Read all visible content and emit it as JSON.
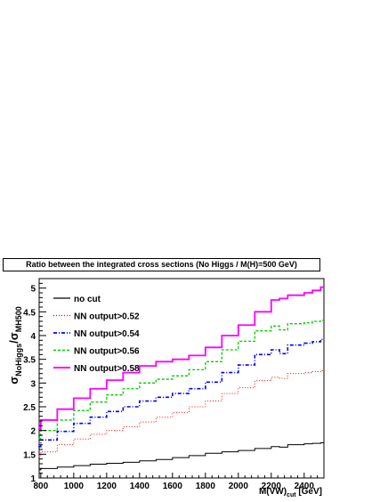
{
  "chart_data": {
    "type": "line",
    "title": "Ratio between the integrated cross sections (No Higgs / M(H)=500 GeV)",
    "xlabel": {
      "main": "M(VW)",
      "sub": "cut",
      "unit": " [GeV]"
    },
    "ylabel": {
      "num": "σ",
      "num_sub": "NoHiggs",
      "slash": "/",
      "den": "σ",
      "den_sub": "MH500"
    },
    "xlim": [
      790,
      2520
    ],
    "ylim": [
      1,
      5.2
    ],
    "xticks": [
      800,
      1000,
      1200,
      1400,
      1600,
      1800,
      2000,
      2200,
      2400
    ],
    "xtick_labels": [
      "800",
      "1000",
      "1200",
      "1400",
      "1600",
      "1800",
      "2000",
      "2200",
      "2400"
    ],
    "yticks": [
      1,
      1.5,
      2,
      2.5,
      3,
      3.5,
      4,
      4.5,
      5
    ],
    "ytick_labels": [
      "1",
      "1.5",
      "2",
      "2.5",
      "3",
      "3.5",
      "4",
      "4.5",
      "5"
    ],
    "legend_position": "top-left",
    "x": [
      790,
      800,
      900,
      1000,
      1100,
      1200,
      1300,
      1400,
      1500,
      1600,
      1700,
      1800,
      1900,
      2000,
      2100,
      2200,
      2250,
      2300,
      2400,
      2450,
      2500,
      2520
    ],
    "series": [
      {
        "name": "no cut",
        "color": "#000000",
        "style": "solid",
        "width": 1,
        "values": [
          1.17,
          1.17,
          1.2,
          1.23,
          1.26,
          1.29,
          1.31,
          1.33,
          1.36,
          1.39,
          1.43,
          1.47,
          1.52,
          1.55,
          1.58,
          1.62,
          1.66,
          1.65,
          1.7,
          1.72,
          1.73,
          1.74
        ]
      },
      {
        "name": "NN output>0.52",
        "color": "#ff0000",
        "style": "dotted",
        "width": 1,
        "values": [
          1.44,
          1.45,
          1.55,
          1.7,
          1.82,
          1.92,
          2.0,
          2.08,
          2.18,
          2.28,
          2.38,
          2.5,
          2.62,
          2.78,
          2.9,
          3.05,
          3.12,
          3.1,
          3.2,
          3.22,
          3.24,
          3.26
        ]
      },
      {
        "name": "NN output>0.54",
        "color": "#0000ff",
        "style": "dashdot",
        "width": 1.6,
        "values": [
          1.65,
          1.66,
          1.8,
          1.98,
          2.15,
          2.28,
          2.4,
          2.5,
          2.62,
          2.7,
          2.78,
          2.88,
          3.02,
          3.22,
          3.38,
          3.6,
          3.7,
          3.62,
          3.8,
          3.84,
          3.87,
          3.92
        ]
      },
      {
        "name": "NN output>0.56",
        "color": "#00cc00",
        "style": "dashed",
        "width": 1.3,
        "values": [
          1.82,
          1.83,
          2.0,
          2.22,
          2.42,
          2.6,
          2.75,
          2.88,
          3.0,
          3.08,
          3.15,
          3.28,
          3.45,
          3.7,
          3.88,
          4.1,
          4.2,
          4.12,
          4.25,
          4.27,
          4.3,
          4.32
        ]
      },
      {
        "name": "NN output>0.58",
        "color": "#ff00ff",
        "style": "solid",
        "width": 1.8,
        "values": [
          2.02,
          2.03,
          2.22,
          2.45,
          2.68,
          2.88,
          3.06,
          3.22,
          3.36,
          3.45,
          3.5,
          3.58,
          3.75,
          4.0,
          4.22,
          4.5,
          4.75,
          4.78,
          4.85,
          4.9,
          4.95,
          5.02
        ]
      }
    ]
  }
}
